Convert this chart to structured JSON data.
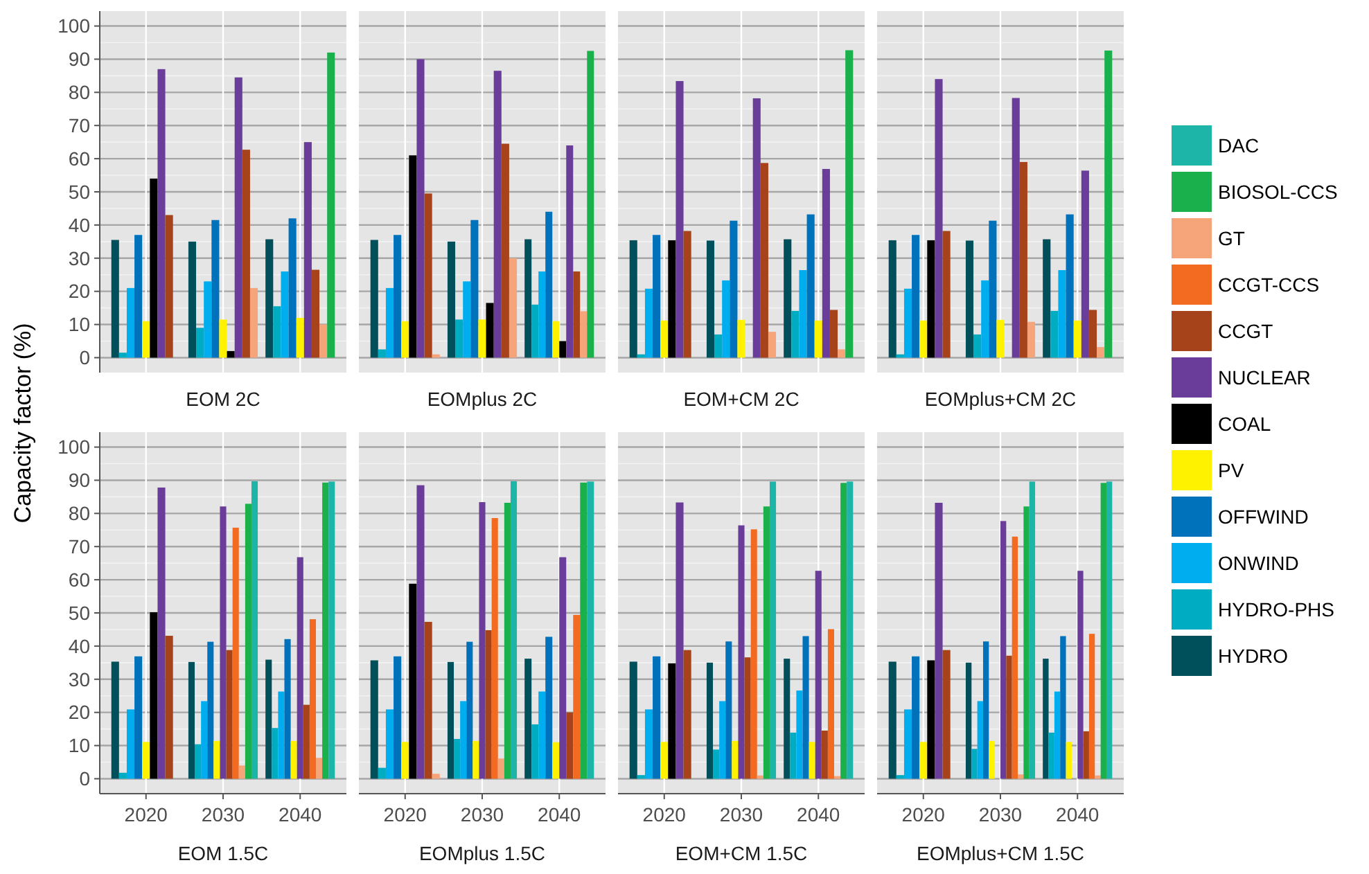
{
  "chart_data": [
    {
      "type": "bar",
      "title": "EOM 2C",
      "ylabel": "Capacity factor (%)",
      "legend": "right",
      "grid": true,
      "tick_labels": "y",
      "categories": [
        "2020",
        "2030",
        "2040"
      ],
      "ylim": [
        -4.5,
        104.5
      ],
      "yticks": [
        0,
        10,
        20,
        30,
        40,
        50,
        60,
        70,
        80,
        90,
        100
      ],
      "series": [
        {
          "name": "HYDRO",
          "color": "#00505c",
          "values": [
            35.5,
            35,
            35.7
          ]
        },
        {
          "name": "HYDRO-PHS",
          "color": "#00acc1",
          "values": [
            1.5,
            9,
            15.5
          ]
        },
        {
          "name": "ONWIND",
          "color": "#00aeef",
          "values": [
            21,
            23,
            26
          ]
        },
        {
          "name": "OFFWIND",
          "color": "#0072bc",
          "values": [
            37,
            41.5,
            42
          ]
        },
        {
          "name": "PV",
          "color": "#fff200",
          "values": [
            11,
            11.5,
            12
          ]
        },
        {
          "name": "COAL",
          "color": "#000000",
          "values": [
            54,
            2,
            null
          ]
        },
        {
          "name": "NUCLEAR",
          "color": "#6a3d9a",
          "values": [
            87,
            84.5,
            65
          ]
        },
        {
          "name": "CCGT",
          "color": "#a6431a",
          "values": [
            43,
            62.7,
            26.5
          ]
        },
        {
          "name": "CCGT-CCS",
          "color": "#f26b21",
          "values": [
            null,
            null,
            null
          ]
        },
        {
          "name": "GT",
          "color": "#f6a57a",
          "values": [
            0,
            21,
            10
          ]
        },
        {
          "name": "BIOSOL-CCS",
          "color": "#1ab04b",
          "values": [
            null,
            null,
            92
          ]
        },
        {
          "name": "DAC",
          "color": "#1cb5a8",
          "values": [
            null,
            null,
            null
          ]
        }
      ]
    },
    {
      "type": "bar",
      "title": "EOMplus 2C",
      "grid": true,
      "tick_labels": false,
      "categories": [
        "2020",
        "2030",
        "2040"
      ],
      "ylim": [
        -4.5,
        104.5
      ],
      "yticks": [
        0,
        10,
        20,
        30,
        40,
        50,
        60,
        70,
        80,
        90,
        100
      ],
      "series": [
        {
          "color": "#00505c",
          "values": [
            35.5,
            35,
            35.7
          ]
        },
        {
          "color": "#00acc1",
          "values": [
            2.5,
            11.5,
            16
          ]
        },
        {
          "color": "#00aeef",
          "values": [
            21,
            23,
            26
          ]
        },
        {
          "color": "#0072bc",
          "values": [
            37,
            41.5,
            44
          ]
        },
        {
          "color": "#fff200",
          "values": [
            11,
            11.5,
            11
          ]
        },
        {
          "color": "#000000",
          "values": [
            61,
            16.5,
            5
          ]
        },
        {
          "color": "#6a3d9a",
          "values": [
            90,
            86.5,
            64
          ]
        },
        {
          "color": "#a6431a",
          "values": [
            49.5,
            64.5,
            26
          ]
        },
        {
          "color": "#f6a57a",
          "values": [
            1,
            30,
            14
          ]
        },
        {
          "color": "#1ab04b",
          "values": [
            null,
            null,
            92.5
          ]
        }
      ]
    },
    {
      "type": "bar",
      "title": "EOM+CM 2C",
      "grid": true,
      "tick_labels": false,
      "categories": [
        "2020",
        "2030",
        "2040"
      ],
      "ylim": [
        -4.5,
        104.5
      ],
      "yticks": [
        0,
        10,
        20,
        30,
        40,
        50,
        60,
        70,
        80,
        90,
        100
      ],
      "series": [
        {
          "color": "#00505c",
          "values": [
            35.4,
            35.3,
            35.7
          ]
        },
        {
          "color": "#00acc1",
          "values": [
            1,
            7,
            14.1
          ]
        },
        {
          "color": "#00aeef",
          "values": [
            20.8,
            23.3,
            26.4
          ]
        },
        {
          "color": "#0072bc",
          "values": [
            37,
            41.3,
            43.2
          ]
        },
        {
          "color": "#fff200",
          "values": [
            11.2,
            11.4,
            11.2
          ]
        },
        {
          "color": "#000000",
          "values": [
            35.4,
            0,
            null
          ]
        },
        {
          "color": "#6a3d9a",
          "values": [
            83.4,
            78.2,
            56.9
          ]
        },
        {
          "color": "#a6431a",
          "values": [
            38.2,
            58.7,
            14.4
          ]
        },
        {
          "color": "#f6a57a",
          "values": [
            0,
            7.8,
            2.5
          ]
        },
        {
          "color": "#1ab04b",
          "values": [
            null,
            null,
            92.7
          ]
        }
      ]
    },
    {
      "type": "bar",
      "title": "EOMplus+CM 2C",
      "grid": true,
      "tick_labels": false,
      "categories": [
        "2020",
        "2030",
        "2040"
      ],
      "ylim": [
        -4.5,
        104.5
      ],
      "yticks": [
        0,
        10,
        20,
        30,
        40,
        50,
        60,
        70,
        80,
        90,
        100
      ],
      "series": [
        {
          "color": "#00505c",
          "values": [
            35.4,
            35.3,
            35.7
          ]
        },
        {
          "color": "#00acc1",
          "values": [
            1,
            7,
            14.1
          ]
        },
        {
          "color": "#00aeef",
          "values": [
            20.8,
            23.3,
            26.4
          ]
        },
        {
          "color": "#0072bc",
          "values": [
            37,
            41.3,
            43.2
          ]
        },
        {
          "color": "#fff200",
          "values": [
            11.2,
            11.4,
            11.2
          ]
        },
        {
          "color": "#000000",
          "values": [
            35.4,
            0,
            null
          ]
        },
        {
          "color": "#6a3d9a",
          "values": [
            84,
            78.3,
            56.4
          ]
        },
        {
          "color": "#a6431a",
          "values": [
            38.2,
            59,
            14.4
          ]
        },
        {
          "color": "#f6a57a",
          "values": [
            0,
            10.8,
            3.2
          ]
        },
        {
          "color": "#1ab04b",
          "values": [
            null,
            null,
            92.6
          ]
        }
      ]
    },
    {
      "type": "bar",
      "title": "EOM 1.5C",
      "grid": true,
      "categories": [
        "2020",
        "2030",
        "2040"
      ],
      "ylim": [
        -4.5,
        104.5
      ],
      "yticks": [
        0,
        10,
        20,
        30,
        40,
        50,
        60,
        70,
        80,
        90,
        100
      ],
      "series": [
        {
          "color": "#00505c",
          "values": [
            35.3,
            35.2,
            35.9
          ]
        },
        {
          "color": "#00acc1",
          "values": [
            1.8,
            10.4,
            15.3
          ]
        },
        {
          "color": "#00aeef",
          "values": [
            20.9,
            23.4,
            26.3
          ]
        },
        {
          "color": "#0072bc",
          "values": [
            36.9,
            41.3,
            42.1
          ]
        },
        {
          "color": "#fff200",
          "values": [
            11.1,
            11.4,
            11.4
          ]
        },
        {
          "color": "#000000",
          "values": [
            50.2,
            null,
            null
          ]
        },
        {
          "color": "#6a3d9a",
          "values": [
            87.8,
            82.1,
            66.8
          ]
        },
        {
          "color": "#a6431a",
          "values": [
            43.1,
            38.8,
            22.3
          ]
        },
        {
          "color": "#f26b21",
          "values": [
            null,
            75.7,
            48.1
          ]
        },
        {
          "color": "#f6a57a",
          "values": [
            0,
            4,
            6.3
          ]
        },
        {
          "color": "#1ab04b",
          "values": [
            null,
            82.9,
            89.3
          ]
        },
        {
          "color": "#1cb5a8",
          "values": [
            null,
            89.7,
            89.6
          ]
        }
      ]
    },
    {
      "type": "bar",
      "title": "EOMplus 1.5C",
      "grid": true,
      "tick_labels": "x",
      "categories": [
        "2020",
        "2030",
        "2040"
      ],
      "ylim": [
        -4.5,
        104.5
      ],
      "yticks": [
        0,
        10,
        20,
        30,
        40,
        50,
        60,
        70,
        80,
        90,
        100
      ],
      "series": [
        {
          "color": "#00505c",
          "values": [
            35.7,
            35.2,
            36.2
          ]
        },
        {
          "color": "#00acc1",
          "values": [
            3.3,
            12,
            16.4
          ]
        },
        {
          "color": "#00aeef",
          "values": [
            20.9,
            23.4,
            26.3
          ]
        },
        {
          "color": "#0072bc",
          "values": [
            36.9,
            41.3,
            42.8
          ]
        },
        {
          "color": "#fff200",
          "values": [
            11.1,
            11.4,
            11
          ]
        },
        {
          "color": "#000000",
          "values": [
            58.8,
            null,
            null
          ]
        },
        {
          "color": "#6a3d9a",
          "values": [
            88.5,
            83.4,
            66.8
          ]
        },
        {
          "color": "#a6431a",
          "values": [
            47.3,
            44.8,
            20
          ]
        },
        {
          "color": "#f26b21",
          "values": [
            null,
            78.6,
            49.4
          ]
        },
        {
          "color": "#f6a57a",
          "values": [
            1.5,
            6.1,
            null
          ]
        },
        {
          "color": "#1ab04b",
          "values": [
            null,
            83.2,
            89.3
          ]
        },
        {
          "color": "#1cb5a8",
          "values": [
            null,
            89.7,
            89.6
          ]
        }
      ]
    },
    {
      "type": "bar",
      "title": "EOM+CM 1.5C",
      "grid": true,
      "tick_labels": "x",
      "categories": [
        "2020",
        "2030",
        "2040"
      ],
      "ylim": [
        -4.5,
        104.5
      ],
      "yticks": [
        0,
        10,
        20,
        30,
        40,
        50,
        60,
        70,
        80,
        90,
        100
      ],
      "series": [
        {
          "color": "#00505c",
          "values": [
            35.3,
            35,
            36.2
          ]
        },
        {
          "color": "#00acc1",
          "values": [
            1.1,
            8.8,
            13.9
          ]
        },
        {
          "color": "#00aeef",
          "values": [
            20.9,
            23.4,
            26.6
          ]
        },
        {
          "color": "#0072bc",
          "values": [
            36.9,
            41.4,
            43
          ]
        },
        {
          "color": "#fff200",
          "values": [
            11.1,
            11.4,
            11.1
          ]
        },
        {
          "color": "#000000",
          "values": [
            34.8,
            null,
            null
          ]
        },
        {
          "color": "#6a3d9a",
          "values": [
            83.3,
            76.4,
            62.7
          ]
        },
        {
          "color": "#a6431a",
          "values": [
            38.8,
            36.6,
            14.5
          ]
        },
        {
          "color": "#f26b21",
          "values": [
            null,
            75.2,
            45.1
          ]
        },
        {
          "color": "#f6a57a",
          "values": [
            0,
            1,
            0.8
          ]
        },
        {
          "color": "#1ab04b",
          "values": [
            null,
            82.1,
            89.2
          ]
        },
        {
          "color": "#1cb5a8",
          "values": [
            null,
            89.6,
            89.6
          ]
        }
      ]
    },
    {
      "type": "bar",
      "title": "EOMplus+CM 1.5C",
      "grid": true,
      "tick_labels": "x",
      "categories": [
        "2020",
        "2030",
        "2040"
      ],
      "ylim": [
        -4.5,
        104.5
      ],
      "yticks": [
        0,
        10,
        20,
        30,
        40,
        50,
        60,
        70,
        80,
        90,
        100
      ],
      "series": [
        {
          "color": "#00505c",
          "values": [
            35.3,
            35,
            36.2
          ]
        },
        {
          "color": "#00acc1",
          "values": [
            1.1,
            9,
            13.9
          ]
        },
        {
          "color": "#00aeef",
          "values": [
            20.9,
            23.4,
            26.3
          ]
        },
        {
          "color": "#0072bc",
          "values": [
            36.9,
            41.4,
            43
          ]
        },
        {
          "color": "#fff200",
          "values": [
            11.1,
            11.4,
            11.1
          ]
        },
        {
          "color": "#000000",
          "values": [
            35.7,
            0,
            0
          ]
        },
        {
          "color": "#6a3d9a",
          "values": [
            83.2,
            77.7,
            62.7
          ]
        },
        {
          "color": "#a6431a",
          "values": [
            38.8,
            37.1,
            14.3
          ]
        },
        {
          "color": "#f26b21",
          "values": [
            null,
            73,
            43.7
          ]
        },
        {
          "color": "#f6a57a",
          "values": [
            0,
            1.3,
            1
          ]
        },
        {
          "color": "#1ab04b",
          "values": [
            null,
            82.1,
            89.2
          ]
        },
        {
          "color": "#1cb5a8",
          "values": [
            null,
            89.6,
            89.6
          ]
        }
      ]
    }
  ]
}
